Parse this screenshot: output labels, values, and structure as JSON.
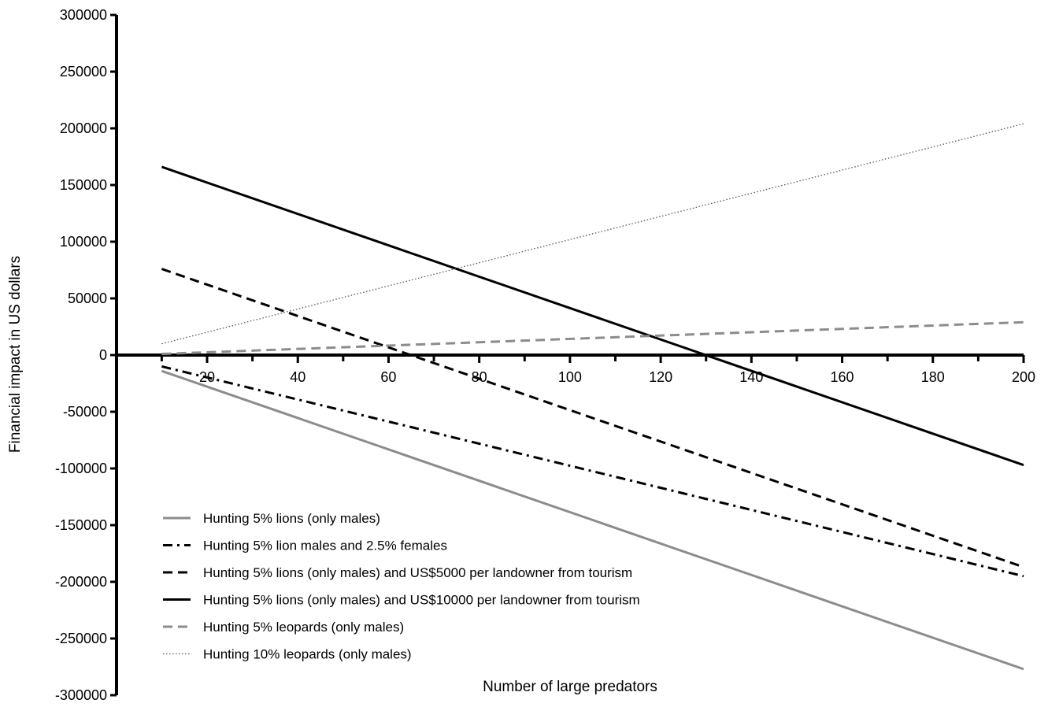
{
  "chart_data": {
    "type": "line",
    "xlabel": "Number of large predators",
    "ylabel": "Financial impact in US dollars",
    "xlim": [
      10,
      200
    ],
    "ylim": [
      -300000,
      300000
    ],
    "x_ticks": [
      20,
      40,
      60,
      80,
      100,
      120,
      140,
      160,
      180,
      200
    ],
    "y_ticks": [
      300000,
      250000,
      200000,
      150000,
      100000,
      50000,
      0,
      -50000,
      -100000,
      -150000,
      -200000,
      -250000,
      -300000
    ],
    "grid": false,
    "legend_position": "bottom-left",
    "series": [
      {
        "name": "Hunting 5% lions (only males)",
        "style": "solid",
        "color": "#8c8c8c",
        "x": [
          10,
          200
        ],
        "y": [
          -14000,
          -277000
        ]
      },
      {
        "name": "Hunting 5% lion males and 2.5% females",
        "style": "dashdot",
        "color": "#000000",
        "x": [
          10,
          200
        ],
        "y": [
          -10000,
          -195000
        ]
      },
      {
        "name": "Hunting 5% lions (only males) and US$5000 per landowner from tourism",
        "style": "dashed",
        "color": "#000000",
        "x": [
          10,
          200
        ],
        "y": [
          76000,
          -187000
        ]
      },
      {
        "name": "Hunting 5% lions (only males) and US$10000 per landowner from tourism",
        "style": "solid",
        "color": "#000000",
        "x": [
          10,
          200
        ],
        "y": [
          166000,
          -97000
        ]
      },
      {
        "name": "Hunting 5% leopards (only males)",
        "style": "dashed",
        "color": "#8c8c8c",
        "x": [
          10,
          200
        ],
        "y": [
          1000,
          29000
        ]
      },
      {
        "name": "Hunting 10% leopards (only males)",
        "style": "dotted",
        "color": "#555555",
        "x": [
          10,
          200
        ],
        "y": [
          10000,
          204000
        ]
      }
    ]
  }
}
